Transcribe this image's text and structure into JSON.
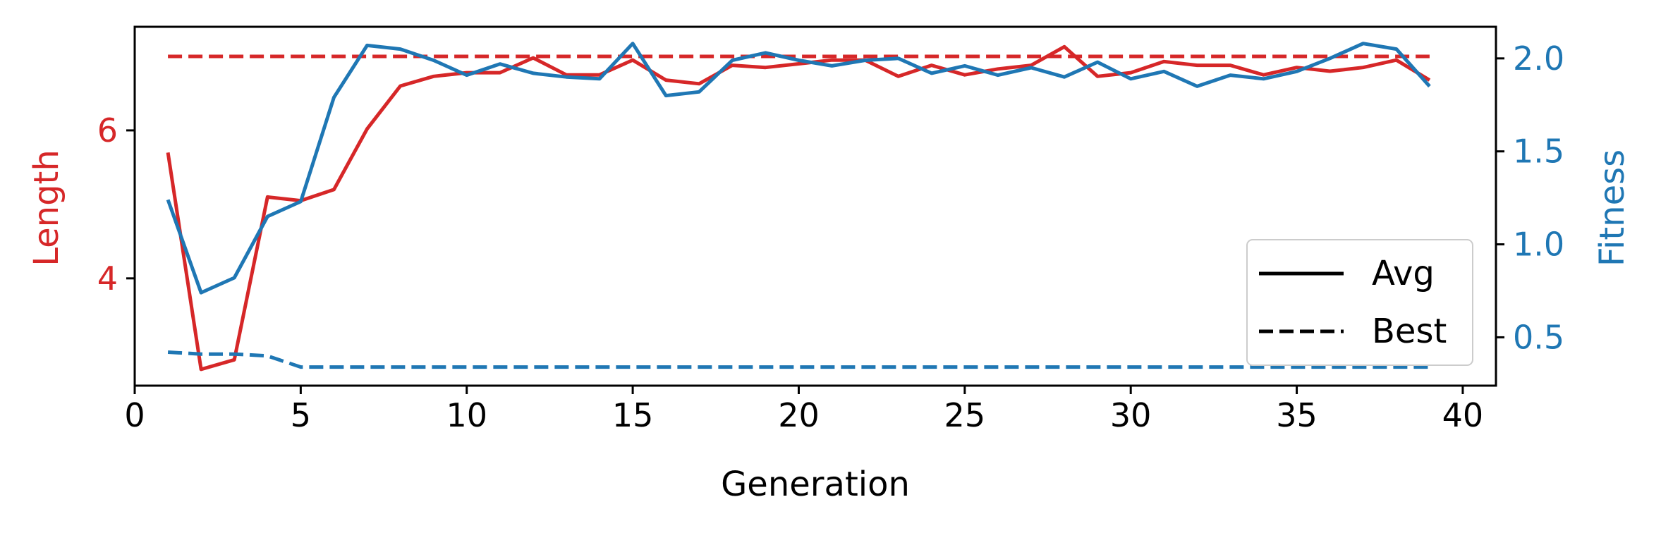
{
  "chart_data": {
    "type": "line",
    "xlabel": "Generation",
    "ylabel_left": "Length",
    "ylabel_right": "Fitness",
    "xlim": [
      0,
      41
    ],
    "ylim_left": [
      2.55,
      7.4
    ],
    "ylim_right": [
      0.24,
      2.17
    ],
    "xticks": [
      0,
      5,
      10,
      15,
      20,
      25,
      30,
      35,
      40
    ],
    "yticks_left": [
      4,
      6
    ],
    "yticks_right": [
      0.5,
      1.0,
      1.5,
      2.0
    ],
    "ytick_labels_right": [
      "0.5",
      "1.0",
      "1.5",
      "2.0"
    ],
    "legend": {
      "location": "lower right",
      "entries": [
        {
          "label": "Avg",
          "style": "solid"
        },
        {
          "label": "Best",
          "style": "dashed"
        }
      ]
    },
    "colors": {
      "length": "#d62728",
      "fitness": "#1f77b4"
    },
    "x": [
      1,
      2,
      3,
      4,
      5,
      6,
      7,
      8,
      9,
      10,
      11,
      12,
      13,
      14,
      15,
      16,
      17,
      18,
      19,
      20,
      21,
      22,
      23,
      24,
      25,
      26,
      27,
      28,
      29,
      30,
      31,
      32,
      33,
      34,
      35,
      36,
      37,
      38,
      39
    ],
    "series": [
      {
        "axis": "left",
        "color": "length",
        "style": "solid",
        "values": [
          5.7,
          2.77,
          2.9,
          5.1,
          5.05,
          5.2,
          6.02,
          6.6,
          6.73,
          6.78,
          6.78,
          6.98,
          6.75,
          6.75,
          6.95,
          6.68,
          6.63,
          6.88,
          6.85,
          6.9,
          6.95,
          6.95,
          6.73,
          6.88,
          6.75,
          6.83,
          6.88,
          7.13,
          6.73,
          6.78,
          6.93,
          6.88,
          6.88,
          6.75,
          6.85,
          6.8,
          6.85,
          6.95,
          6.68
        ]
      },
      {
        "axis": "left",
        "color": "length",
        "style": "dashed",
        "values": [
          7.0,
          7.0,
          7.0,
          7.0,
          7.0,
          7.0,
          7.0,
          7.0,
          7.0,
          7.0,
          7.0,
          7.0,
          7.0,
          7.0,
          7.0,
          7.0,
          7.0,
          7.0,
          7.0,
          7.0,
          7.0,
          7.0,
          7.0,
          7.0,
          7.0,
          7.0,
          7.0,
          7.0,
          7.0,
          7.0,
          7.0,
          7.0,
          7.0,
          7.0,
          7.0,
          7.0,
          7.0,
          7.0,
          7.0
        ]
      },
      {
        "axis": "right",
        "color": "fitness",
        "style": "solid",
        "values": [
          1.24,
          0.74,
          0.82,
          1.15,
          1.23,
          1.79,
          2.07,
          2.05,
          1.99,
          1.91,
          1.97,
          1.92,
          1.9,
          1.89,
          2.08,
          1.8,
          1.82,
          1.99,
          2.03,
          1.99,
          1.96,
          1.99,
          2.0,
          1.92,
          1.96,
          1.91,
          1.95,
          1.9,
          1.98,
          1.89,
          1.93,
          1.85,
          1.91,
          1.89,
          1.93,
          2.0,
          2.08,
          2.05,
          1.85
        ]
      },
      {
        "axis": "right",
        "color": "fitness",
        "style": "dashed",
        "values": [
          0.42,
          0.41,
          0.41,
          0.4,
          0.34,
          0.34,
          0.34,
          0.34,
          0.34,
          0.34,
          0.34,
          0.34,
          0.34,
          0.34,
          0.34,
          0.34,
          0.34,
          0.34,
          0.34,
          0.34,
          0.34,
          0.34,
          0.34,
          0.34,
          0.34,
          0.34,
          0.34,
          0.34,
          0.34,
          0.34,
          0.34,
          0.34,
          0.34,
          0.34,
          0.34,
          0.34,
          0.34,
          0.34,
          0.34
        ]
      }
    ]
  }
}
